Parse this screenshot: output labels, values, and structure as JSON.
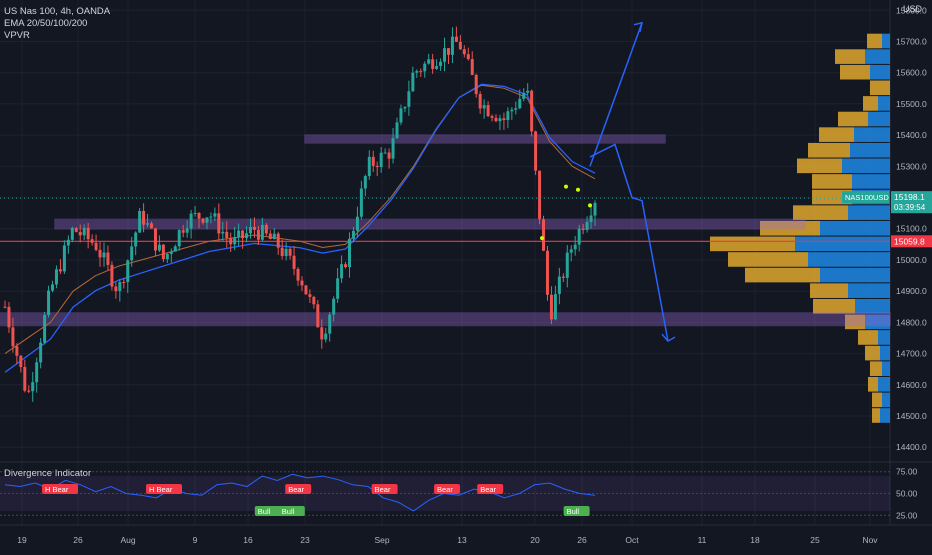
{
  "header": {
    "symbol_line": "US Nas 100, 4h, OANDA",
    "ema_label": "EMA 20/50/100/200",
    "vpvr_label": "VPVR",
    "currency": "USD"
  },
  "indicator": {
    "title": "Divergence Indicator",
    "y_ticks": [
      "75.00",
      "50.00",
      "25.00"
    ],
    "labels": [
      {
        "text": "H Bear",
        "type": "bear",
        "x": 20
      },
      {
        "text": "H Bear",
        "type": "bear",
        "x": 85
      },
      {
        "text": "Bull",
        "type": "bull",
        "x": 153
      },
      {
        "text": "Bull",
        "type": "bull",
        "x": 168
      },
      {
        "text": "Bear",
        "type": "bear",
        "x": 172
      },
      {
        "text": "Bear",
        "type": "bear",
        "x": 226
      },
      {
        "text": "Bear",
        "type": "bear",
        "x": 265
      },
      {
        "text": "Bear",
        "type": "bear",
        "x": 292
      },
      {
        "text": "Bull",
        "type": "bull",
        "x": 346
      }
    ]
  },
  "price_axis": {
    "ticks": [
      "15800.0",
      "15700.0",
      "15600.0",
      "15500.0",
      "15400.0",
      "15300.0",
      "15100.0",
      "15000.0",
      "14900.0",
      "14800.0",
      "14700.0",
      "14600.0",
      "14500.0",
      "14400.0"
    ],
    "current_tag": {
      "symbol": "NAS100USD",
      "price": "15198.1",
      "countdown": "03:39:54",
      "color": "#26a69a"
    },
    "line_tag": {
      "price": "15059.8",
      "color": "#f23645"
    }
  },
  "time_axis": {
    "labels": [
      "19",
      "26",
      "Aug",
      "9",
      "16",
      "23",
      "Sep",
      "13",
      "20",
      "26",
      "Oct",
      "11",
      "18",
      "25",
      "Nov"
    ]
  },
  "chart_data": {
    "type": "line",
    "title": "US Nas 100, 4h, OANDA",
    "xlabel": "",
    "ylabel": "USD",
    "ylim": [
      14350,
      15850
    ],
    "grid": true,
    "series": [
      {
        "name": "US Nas 100",
        "x": [
          "19",
          "",
          "",
          "26",
          "",
          "",
          "Aug",
          "",
          "",
          "9",
          "",
          "",
          "16",
          "",
          "",
          "23",
          "",
          "",
          "Sep",
          "",
          "",
          "13",
          "",
          "",
          "20",
          "",
          "26"
        ],
        "values": [
          14850,
          14560,
          14900,
          15100,
          15050,
          14900,
          15150,
          15000,
          15130,
          15150,
          15050,
          15100,
          15050,
          14950,
          14760,
          15000,
          15300,
          15350,
          15600,
          15650,
          15700,
          15500,
          15450,
          15550,
          14820,
          15050,
          15198
        ]
      },
      {
        "name": "EMA 20/50/100/200",
        "values": [
          14700,
          14750,
          14800,
          14900,
          14950,
          14980,
          15000,
          15020,
          15040,
          15060,
          15070,
          15080,
          15070,
          15060,
          15040,
          15050,
          15120,
          15200,
          15300,
          15420,
          15520,
          15560,
          15550,
          15520,
          15380,
          15300,
          15260
        ]
      }
    ],
    "levels": [
      {
        "value": 15059.8,
        "color": "#f23645"
      },
      {
        "value": 15390,
        "color": "#9c6bd6",
        "band": [
          15375,
          15400
        ]
      },
      {
        "value": 15115,
        "color": "#9c6bd6",
        "band": [
          15100,
          15130
        ]
      },
      {
        "value": 14810,
        "color": "#9c6bd6",
        "band": [
          14790,
          14830
        ]
      }
    ],
    "projection": [
      {
        "x": "26",
        "value": 15300
      },
      {
        "x": "Oct",
        "value": 15760
      },
      {
        "x": "",
        "value": 15400
      },
      {
        "x": "",
        "value": 15380
      },
      {
        "x": "Oct",
        "value": 15150
      },
      {
        "x": "11",
        "value": 14740
      }
    ],
    "volume_profile": [
      {
        "price": 15700,
        "buy": 15,
        "sell": 8
      },
      {
        "price": 15650,
        "buy": 30,
        "sell": 25
      },
      {
        "price": 15600,
        "buy": 30,
        "sell": 20
      },
      {
        "price": 15550,
        "buy": 20,
        "sell": 0
      },
      {
        "price": 15500,
        "buy": 15,
        "sell": 12
      },
      {
        "price": 15450,
        "buy": 30,
        "sell": 22
      },
      {
        "price": 15400,
        "buy": 35,
        "sell": 36
      },
      {
        "price": 15350,
        "buy": 42,
        "sell": 40
      },
      {
        "price": 15300,
        "buy": 45,
        "sell": 48
      },
      {
        "price": 15250,
        "buy": 40,
        "sell": 38
      },
      {
        "price": 15200,
        "buy": 40,
        "sell": 38
      },
      {
        "price": 15150,
        "buy": 55,
        "sell": 42
      },
      {
        "price": 15100,
        "buy": 60,
        "sell": 70
      },
      {
        "price": 15050,
        "buy": 85,
        "sell": 95
      },
      {
        "price": 15000,
        "buy": 80,
        "sell": 82
      },
      {
        "price": 14950,
        "buy": 75,
        "sell": 70
      },
      {
        "price": 14900,
        "buy": 38,
        "sell": 42
      },
      {
        "price": 14850,
        "buy": 42,
        "sell": 35
      },
      {
        "price": 14800,
        "buy": 20,
        "sell": 25
      },
      {
        "price": 14750,
        "buy": 20,
        "sell": 12
      },
      {
        "price": 14700,
        "buy": 15,
        "sell": 10
      },
      {
        "price": 14650,
        "buy": 12,
        "sell": 8
      },
      {
        "price": 14600,
        "buy": 10,
        "sell": 12
      },
      {
        "price": 14550,
        "buy": 10,
        "sell": 8
      },
      {
        "price": 14500,
        "buy": 8,
        "sell": 10
      }
    ],
    "rsi": [
      60,
      58,
      62,
      55,
      65,
      60,
      52,
      58,
      50,
      48,
      45,
      55,
      50,
      48,
      60,
      62,
      58,
      70,
      65,
      72,
      68,
      70,
      66,
      60,
      58,
      45,
      40,
      30,
      42,
      50,
      48,
      55,
      52,
      45,
      50,
      60,
      62,
      55,
      50,
      48
    ]
  },
  "colors": {
    "background": "#131722",
    "grid": "#1e222d",
    "up": "#26a69a",
    "down": "#ef5350",
    "projection": "#2962ff",
    "band": "#9c6bd6"
  }
}
